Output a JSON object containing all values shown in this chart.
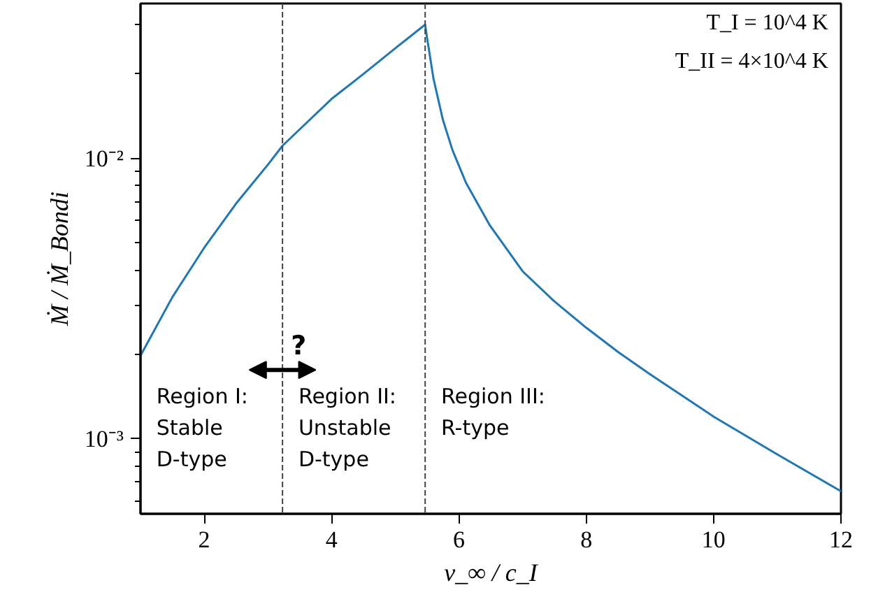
{
  "chart_data": {
    "type": "line",
    "xlabel": "v_∞ / c_I",
    "ylabel": "Ṁ / Ṁ_Bondi",
    "x": [
      1,
      1.5,
      2,
      2.5,
      3,
      3.23,
      3.5,
      4,
      4.5,
      5,
      5.47,
      5.5,
      5.53,
      5.6,
      5.75,
      5.9,
      6.11,
      6.48,
      7,
      7.5,
      8,
      8.5,
      9,
      10,
      11,
      12
    ],
    "series": [
      {
        "color": "#1f77b4",
        "values": [
          0.00198,
          0.0032,
          0.0048,
          0.0069,
          0.0095,
          0.0111,
          0.0127,
          0.0163,
          0.02,
          0.0247,
          0.03,
          0.0269,
          0.0244,
          0.0193,
          0.0137,
          0.0107,
          0.0082,
          0.0058,
          0.00396,
          0.00309,
          0.00249,
          0.00204,
          0.0017,
          0.0012,
          0.00088,
          0.00065
        ]
      }
    ],
    "log": "y",
    "xlim": [
      1,
      12
    ],
    "ylim": [
      0.00054,
      0.0357
    ],
    "xticks": [
      2,
      4,
      6,
      8,
      10,
      12
    ],
    "yticks": [
      {
        "value": 0.001,
        "label": "10⁻³"
      },
      {
        "value": 0.01,
        "label": "10⁻²"
      }
    ],
    "ref_lines": [
      {
        "axis": "x",
        "value": 3.23,
        "color": "#444444",
        "line_style": "dashed"
      },
      {
        "axis": "x",
        "value": 5.47,
        "color": "#444444",
        "line_style": "dashed"
      }
    ],
    "annotations": [
      "Region I:\nStable\nD-type",
      "Region II:\nUnstable\nD-type",
      "Region III:\nR-type",
      "T_I = 10^4 K",
      "T_II = 4×10^4 K",
      {
        "text": "?",
        "x": 3.23,
        "y": 0.00176
      }
    ],
    "grid": false,
    "line_style": "solid",
    "marker": "none"
  }
}
